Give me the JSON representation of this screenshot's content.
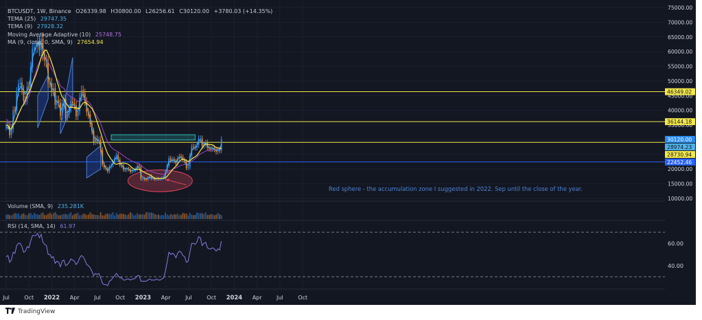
{
  "legend": {
    "symbol": "BTCUSDT, 1W, Binance",
    "o": "O26339.98",
    "h": "H30800.00",
    "l": "L26256.61",
    "c": "C30120.00",
    "chg": "+3780.03 (+14.35%)",
    "tema25_label": "TEMA (25)",
    "tema25_value": "29747.35",
    "tema9_label": "TEMA (9)",
    "tema9_value": "27928.32",
    "maa_label": "Moving Average Adaptive (10)",
    "maa_value": "25748.75",
    "ma_label": "MA (9, close, 0, SMA, 9)",
    "ma_value": "27654.94"
  },
  "volume_legend": {
    "label": "Volume (SMA, 9)",
    "value": "235.281K"
  },
  "rsi_legend": {
    "label": "RSI (14, SMA, 14)",
    "value": "61.97"
  },
  "annotation": "Red sphere - the accumulation zone I suggested in 2022. Sep until the close of the year.",
  "footer": {
    "brand": "TradingView"
  },
  "colors": {
    "bg": "#131722",
    "up": "#2a8cf0",
    "down": "#e8832a",
    "yellow": "#f5e94b",
    "tema": "#4fb3e8",
    "maa": "#9c44c9",
    "rsi": "#8a7be0",
    "teal": "#2bb8b3",
    "blue_line": "#2962ff",
    "annotation": "#4c82d6",
    "sphere": "#e0455d"
  },
  "chart_data": {
    "type": "candlestick",
    "price_axis": {
      "ylim": [
        10000,
        75000
      ],
      "tick_labels": [
        "75000.00",
        "70000.00",
        "65000.00",
        "60000.00",
        "55000.00",
        "50000.00",
        "45000.00",
        "40000.00",
        "35000.00",
        "30000.00",
        "25000.00",
        "20000.00",
        "15000.00",
        "10000.00"
      ],
      "tick_values": [
        75000,
        70000,
        65000,
        60000,
        55000,
        50000,
        45000,
        40000,
        35000,
        30000,
        25000,
        20000,
        15000,
        10000
      ]
    },
    "time_axis": {
      "labels": [
        "Jul",
        "Oct",
        "2022",
        "Apr",
        "Jul",
        "Oct",
        "2023",
        "Apr",
        "Jul",
        "Oct",
        "2024",
        "Apr",
        "Jul",
        "Oct"
      ],
      "label_months": [
        0,
        3,
        6,
        9,
        12,
        15,
        18,
        21,
        24,
        27,
        30,
        33,
        36,
        39
      ],
      "start": "2021-06-01",
      "weeks_per_month": 4.345
    },
    "horizontal_lines": [
      {
        "value": 46349.02,
        "label": "46349.02",
        "color": "#f5e94b"
      },
      {
        "value": 36144.18,
        "label": "36144.18",
        "color": "#f5e94b"
      },
      {
        "value": 29100,
        "color": "#f5e94b"
      },
      {
        "value": 22452.46,
        "label": "22452.46",
        "color": "#2962ff"
      }
    ],
    "price_labels": [
      {
        "value": 30120.0,
        "label": "30120.00",
        "bg": "#2a8cf0",
        "fg": "#ffffff"
      },
      {
        "value": 28974.23,
        "label": "28974.23",
        "bg": "#4fb3e8",
        "fg": "#131722"
      },
      {
        "value": 28730.94,
        "label": "28730.94",
        "bg": "#f5e94b",
        "fg": "#131722"
      },
      {
        "value": 22452.46,
        "label": "22452.46",
        "bg": "#2962ff",
        "fg": "#ffffff"
      }
    ],
    "zone_rect": {
      "week_start": 60,
      "week_end": 108,
      "price_top": 31700,
      "price_bottom": 29900,
      "color": "#2bb8b3"
    },
    "channels": [
      {
        "points": [
          [
            18,
            45000
          ],
          [
            24,
            52000
          ],
          [
            24,
            44000
          ],
          [
            18,
            34000
          ]
        ]
      },
      {
        "points": [
          [
            31,
            35000
          ],
          [
            38,
            58000
          ],
          [
            38,
            42000
          ],
          [
            31,
            32000
          ]
        ]
      },
      {
        "points": [
          [
            46,
            24000
          ],
          [
            54,
            28000
          ],
          [
            54,
            20000
          ],
          [
            46,
            17000
          ]
        ]
      }
    ],
    "sphere": {
      "week_center": 88,
      "price_center": 16000,
      "week_radius": 8,
      "price_radius": 3700
    },
    "arrow": {
      "from": [
        103,
        14600
      ],
      "to": [
        91,
        16500
      ]
    },
    "closes": [
      35000,
      34700,
      31600,
      33500,
      40000,
      39800,
      46300,
      48800,
      49400,
      47000,
      43200,
      43500,
      48100,
      47700,
      54700,
      60900,
      61500,
      61700,
      63200,
      60600,
      64300,
      58900,
      57000,
      56500,
      49400,
      49300,
      46400,
      47600,
      41900,
      43500,
      42500,
      38100,
      42400,
      43900,
      37300,
      38700,
      40600,
      43000,
      42400,
      41700,
      38000,
      39700,
      44400,
      46800,
      45800,
      43000,
      39400,
      38500,
      35500,
      33000,
      29200,
      30400,
      29500,
      30100,
      26600,
      21500,
      20600,
      20100,
      19200,
      20800,
      21300,
      22600,
      23700,
      24800,
      23200,
      21400,
      21100,
      19800,
      19700,
      20100,
      19900,
      19100,
      19500,
      19600,
      20000,
      21200,
      20800,
      16600,
      16700,
      16500,
      16400,
      17100,
      17600,
      16800,
      16800,
      16500,
      16800,
      16600,
      16600,
      17000,
      17100,
      19200,
      21200,
      23700,
      22900,
      23400,
      22800,
      21900,
      23700,
      24400,
      24100,
      23100,
      22600,
      20300,
      20600,
      24600,
      27700,
      27500,
      27300,
      28200,
      30400,
      30400,
      27800,
      28400,
      29000,
      27300,
      26900,
      26800,
      27100,
      26700,
      25900,
      26700,
      26300,
      30100
    ],
    "tema25": [
      34000,
      34200,
      33000,
      33200,
      36500,
      38500,
      42500,
      46000,
      48000,
      48000,
      46500,
      45500,
      47000,
      47500,
      52000,
      57500,
      60000,
      61500,
      63000,
      62000,
      63000,
      60500,
      58500,
      57000,
      52000,
      50000,
      47500,
      47000,
      43500,
      43000,
      42500,
      39800,
      41000,
      42500,
      39500,
      39200,
      40000,
      41800,
      42000,
      41800,
      39800,
      39800,
      42500,
      45000,
      45500,
      44000,
      41200,
      39500,
      37000,
      34500,
      31000,
      30600,
      29800,
      29800,
      27500,
      23500,
      21500,
      20500,
      19600,
      20300,
      20900,
      22000,
      23000,
      24000,
      23400,
      22100,
      21600,
      20500,
      20200,
      20200,
      20000,
      19400,
      19500,
      19500,
      19800,
      20700,
      20600,
      18000,
      17400,
      16900,
      16600,
      16900,
      17300,
      17000,
      16900,
      16700,
      16800,
      16700,
      16700,
      16900,
      17000,
      18400,
      20200,
      22500,
      22600,
      23100,
      22900,
      22300,
      23300,
      24000,
      24000,
      23400,
      23000,
      21500,
      21300,
      23600,
      26300,
      27000,
      27200,
      27900,
      29600,
      30000,
      28600,
      28600,
      28800,
      27800,
      27300,
      27100,
      27200,
      26900,
      26300,
      26600,
      26500,
      28500
    ],
    "maa": [
      37000,
      36500,
      35500,
      35000,
      35300,
      35700,
      36800,
      38300,
      40000,
      41200,
      42000,
      42600,
      43800,
      44700,
      46600,
      49100,
      51300,
      53200,
      55200,
      56400,
      57800,
      58000,
      58000,
      57800,
      56400,
      55300,
      54000,
      53200,
      51700,
      50700,
      49800,
      48400,
      47800,
      47500,
      46400,
      45600,
      45000,
      44700,
      44400,
      44100,
      43500,
      43000,
      43200,
      43600,
      43800,
      43700,
      43300,
      42900,
      42200,
      41300,
      39800,
      38800,
      37800,
      36900,
      35600,
      33800,
      32200,
      30700,
      29300,
      28300,
      27500,
      26900,
      26500,
      26200,
      25900,
      25400,
      25000,
      24500,
      24100,
      23700,
      23400,
      23000,
      22700,
      22400,
      22100,
      22000,
      21900,
      21300,
      20800,
      20300,
      19900,
      19600,
      19400,
      19200,
      19000,
      18800,
      18600,
      18500,
      18400,
      18300,
      18200,
      18300,
      18600,
      19100,
      19500,
      19900,
      20200,
      20400,
      20700,
      21000,
      21300,
      21500,
      21600,
      21600,
      21700,
      22100,
      22700,
      23200,
      23600,
      24100,
      24700,
      25200,
      25500,
      25800,
      26100,
      26300,
      26400,
      26500,
      26600,
      26600,
      26600,
      26600,
      26600,
      26900
    ],
    "rsi": {
      "ylim": [
        22,
        75
      ],
      "tick_labels": [
        "60.00",
        "40.00"
      ],
      "tick_values": [
        60,
        40
      ],
      "bands": [
        70,
        30
      ],
      "values": [
        48,
        49,
        43,
        45,
        52,
        51,
        58,
        60,
        60,
        57,
        52,
        53,
        57,
        56,
        62,
        67,
        67,
        67,
        69,
        65,
        68,
        61,
        59,
        58,
        50,
        50,
        47,
        48,
        42,
        44,
        43,
        39,
        44,
        45,
        40,
        41,
        43,
        46,
        45,
        44,
        41,
        43,
        47,
        49,
        48,
        45,
        41,
        40,
        38,
        35,
        31,
        33,
        32,
        33,
        29,
        24,
        23,
        23,
        22,
        26,
        27,
        29,
        31,
        33,
        31,
        29,
        29,
        27,
        27,
        28,
        28,
        27,
        28,
        28,
        29,
        31,
        31,
        26,
        26,
        26,
        26,
        27,
        28,
        27,
        27,
        27,
        28,
        27,
        27,
        28,
        29,
        35,
        43,
        52,
        50,
        51,
        50,
        47,
        51,
        53,
        52,
        49,
        48,
        43,
        44,
        52,
        60,
        60,
        59,
        61,
        66,
        65,
        58,
        60,
        61,
        56,
        55,
        55,
        56,
        55,
        53,
        55,
        54,
        62
      ]
    },
    "volume": {
      "values": [
        100,
        107,
        91,
        82,
        109,
        135,
        120,
        129,
        81,
        115,
        132,
        97,
        86,
        125,
        141,
        90,
        140,
        111,
        107,
        95,
        129,
        151,
        91,
        93,
        119,
        145,
        106,
        135,
        154,
        113,
        84,
        89,
        103,
        112,
        119,
        94,
        125,
        154,
        85,
        112,
        126,
        147,
        87,
        90,
        121,
        120,
        90,
        104,
        152,
        112,
        107,
        93,
        94,
        87,
        156,
        85,
        83,
        121,
        121,
        117,
        116,
        155,
        80,
        136,
        100,
        119,
        125,
        118,
        102,
        88,
        112,
        155,
        129,
        81,
        96,
        132,
        99,
        109,
        106,
        103,
        154,
        151,
        148,
        148,
        136,
        113,
        99,
        102,
        84,
        93,
        83,
        144,
        104,
        82,
        112,
        95,
        109,
        107,
        127,
        87,
        99,
        141,
        126,
        124,
        81,
        140,
        101,
        89,
        94,
        150,
        134,
        132,
        134,
        113,
        156,
        94,
        96,
        113,
        107,
        87,
        101,
        138,
        107,
        90
      ]
    }
  }
}
